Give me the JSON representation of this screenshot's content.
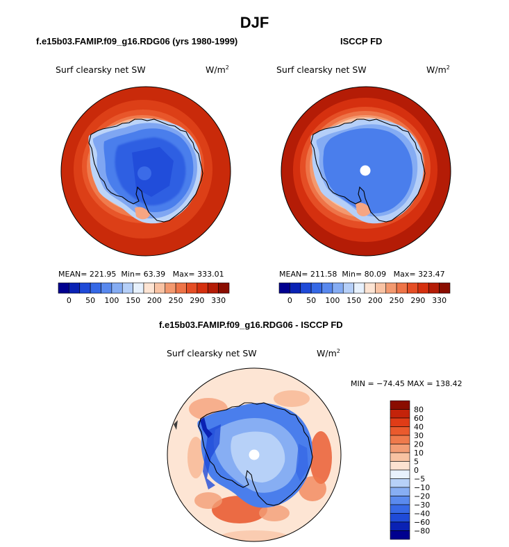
{
  "figure": {
    "title": "DJF",
    "panels": [
      {
        "title": "f.e15b03.FAMIP.f09_g16.RDG06 (yrs 1980-1999)",
        "variable": "Surf clearsky net SW",
        "units_base": "W/m",
        "units_exp": "2",
        "stats": {
          "mean_label": "MEAN=",
          "mean": "221.95",
          "min_label": "Min=",
          "min": "63.39",
          "max_label": "Max=",
          "max": "333.01"
        }
      },
      {
        "title": "ISCCP FD",
        "variable": "Surf clearsky net SW",
        "units_base": "W/m",
        "units_exp": "2",
        "stats": {
          "mean_label": "MEAN=",
          "mean": "211.58",
          "min_label": "Min=",
          "min": "80.09",
          "max_label": "Max=",
          "max": "323.47"
        }
      },
      {
        "title": "f.e15b03.FAMIP.f09_g16.RDG06 - ISCCP FD",
        "variable": "Surf clearsky net SW",
        "units_base": "W/m",
        "units_exp": "2",
        "minmax": "MIN = −74.45 MAX = 138.42"
      }
    ],
    "colorbar_top": {
      "tick_labels": [
        "0",
        "50",
        "100",
        "150",
        "200",
        "250",
        "290",
        "330"
      ],
      "colors": [
        "#00008f",
        "#0a22b4",
        "#1f4ad8",
        "#3568e6",
        "#5888ee",
        "#85acf3",
        "#b5cff8",
        "#e7f1fd",
        "#fde4d3",
        "#f9c3a4",
        "#f3996f",
        "#ee7448",
        "#e54e25",
        "#d5300f",
        "#b41c06",
        "#8a0d00"
      ]
    },
    "colorbar_diff": {
      "tick_labels": [
        "80",
        "60",
        "40",
        "30",
        "20",
        "10",
        "5",
        "0",
        "−5",
        "−10",
        "−20",
        "−30",
        "−40",
        "−60",
        "−80"
      ],
      "colors": [
        "#8a0d00",
        "#c4230a",
        "#e03c17",
        "#ea5a2d",
        "#ef7a4c",
        "#f39d75",
        "#f8c2a2",
        "#fce2d1",
        "#e8f1fd",
        "#b7d1f8",
        "#87aef3",
        "#5a8aee",
        "#3769e6",
        "#1f4bd8",
        "#0a22b4",
        "#00008f"
      ]
    }
  }
}
